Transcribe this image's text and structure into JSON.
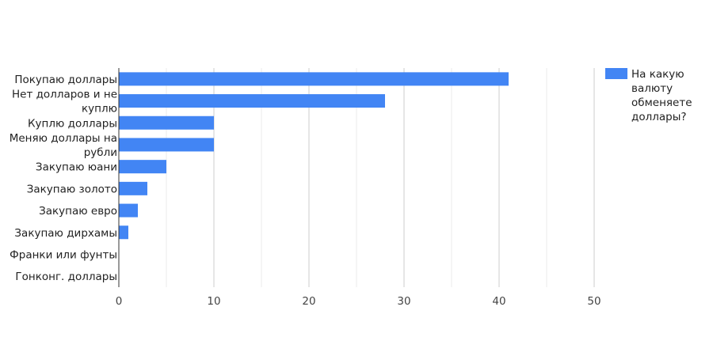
{
  "chart_data": {
    "type": "bar",
    "orientation": "horizontal",
    "categories": [
      [
        "Покупаю доллары"
      ],
      [
        "Нет долларов и не",
        "куплю"
      ],
      [
        "Куплю доллары"
      ],
      [
        "Меняю доллары на",
        "рубли"
      ],
      [
        "Закупаю юани"
      ],
      [
        "Закупаю золото"
      ],
      [
        "Закупаю евро"
      ],
      [
        "Закупаю дирхамы"
      ],
      [
        "Франки или фунты"
      ],
      [
        "Гонконг. доллары"
      ]
    ],
    "series": [
      {
        "name": "На какую валюту обменяете доллары?",
        "values": [
          41,
          28,
          10,
          10,
          5,
          3,
          2,
          1,
          0,
          0
        ]
      }
    ],
    "xlim": [
      0,
      50
    ],
    "xticks": [
      0,
      10,
      20,
      30,
      40,
      50
    ],
    "grid": true,
    "legend_position": "top-right",
    "legend_lines": [
      "На какую",
      "валюту",
      "обменяете",
      "доллары?"
    ],
    "colors": {
      "bar": "#4285f4",
      "grid_major": "#cccccc",
      "grid_minor": "#ebebeb",
      "axis": "#333333"
    }
  }
}
